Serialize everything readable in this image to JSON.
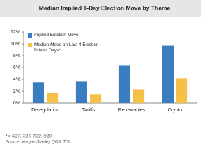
{
  "chart_data": {
    "type": "bar",
    "title": "Median Implied 1-Day Election Move by Theme",
    "categories": [
      "Deregulation",
      "Tariffs",
      "Renewables",
      "Crypto"
    ],
    "series": [
      {
        "name": "Implied Election Move",
        "color": "#3a7ebf",
        "values": [
          3.5,
          3.6,
          6.3,
          9.7
        ]
      },
      {
        "name": "Median Move on Last 4 Election Driven Days*",
        "color": "#f4c048",
        "values": [
          1.7,
          1.5,
          2.3,
          4.2
        ]
      }
    ],
    "ylim": [
      0,
      12
    ],
    "yticks": [
      {
        "value": 0,
        "label": "0%"
      },
      {
        "value": 2,
        "label": "2%"
      },
      {
        "value": 4,
        "label": "4%"
      },
      {
        "value": 6,
        "label": "6%"
      },
      {
        "value": 8,
        "label": "8%"
      },
      {
        "value": 10,
        "label": "10%"
      },
      {
        "value": 12,
        "label": "12%"
      }
    ],
    "grid": false,
    "legend": "upper-left",
    "footnotes": [
      "* = 6/27, 7/15, 7/22, 9/10",
      "Source: Morgan Stanley QDS, TIS"
    ]
  }
}
